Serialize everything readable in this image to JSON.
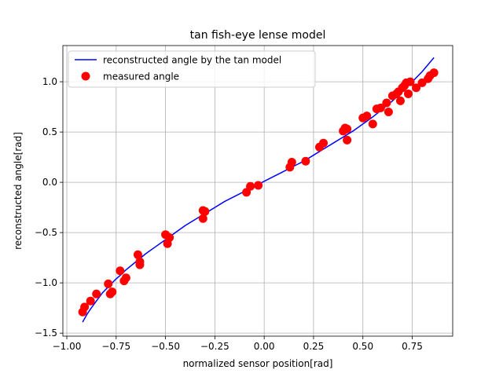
{
  "chart_data": {
    "type": "scatter",
    "title": "tan fish-eye lense model",
    "xlabel": "normalized sensor position[rad]",
    "ylabel": "reconstructed angle[rad]",
    "xlim": [
      -1.02,
      0.955
    ],
    "ylim": [
      -1.53,
      1.36
    ],
    "grid": true,
    "legend_position": "top-left",
    "xticks": [
      {
        "value": -1.0,
        "label": "−1.00"
      },
      {
        "value": -0.75,
        "label": "−0.75"
      },
      {
        "value": -0.5,
        "label": "−0.50"
      },
      {
        "value": -0.25,
        "label": "−0.25"
      },
      {
        "value": 0.0,
        "label": "0.00"
      },
      {
        "value": 0.25,
        "label": "0.25"
      },
      {
        "value": 0.5,
        "label": "0.50"
      },
      {
        "value": 0.75,
        "label": "0.75"
      }
    ],
    "yticks": [
      {
        "value": -1.5,
        "label": "−1.5"
      },
      {
        "value": -1.0,
        "label": "−1.0"
      },
      {
        "value": -0.5,
        "label": "−0.5"
      },
      {
        "value": 0.0,
        "label": "0.0"
      },
      {
        "value": 0.5,
        "label": "0.5"
      },
      {
        "value": 1.0,
        "label": "1.0"
      }
    ],
    "series": [
      {
        "name": "reconstructed angle by the tan model",
        "type": "line",
        "color": "#0000ff",
        "x": [
          -0.92,
          -0.9,
          -0.88,
          -0.85,
          -0.82,
          -0.8,
          -0.78,
          -0.75,
          -0.72,
          -0.7,
          -0.65,
          -0.6,
          -0.55,
          -0.5,
          -0.45,
          -0.4,
          -0.35,
          -0.3,
          -0.25,
          -0.2,
          -0.15,
          -0.1,
          -0.05,
          0.0,
          0.05,
          0.1,
          0.15,
          0.2,
          0.25,
          0.3,
          0.35,
          0.4,
          0.45,
          0.5,
          0.55,
          0.6,
          0.65,
          0.7,
          0.75,
          0.8,
          0.86
        ],
        "y": [
          -1.39,
          -1.32,
          -1.26,
          -1.18,
          -1.1,
          -1.06,
          -1.02,
          -0.96,
          -0.91,
          -0.87,
          -0.79,
          -0.71,
          -0.64,
          -0.57,
          -0.5,
          -0.43,
          -0.37,
          -0.31,
          -0.25,
          -0.19,
          -0.14,
          -0.09,
          -0.04,
          0.01,
          0.06,
          0.11,
          0.16,
          0.21,
          0.27,
          0.33,
          0.39,
          0.45,
          0.51,
          0.58,
          0.65,
          0.73,
          0.81,
          0.9,
          1.0,
          1.1,
          1.24
        ]
      },
      {
        "name": "measured angle",
        "type": "scatter",
        "color": "#ff0000",
        "x": [
          -0.92,
          -0.91,
          -0.88,
          -0.85,
          -0.79,
          -0.78,
          -0.77,
          -0.73,
          -0.71,
          -0.7,
          -0.64,
          -0.63,
          -0.63,
          -0.5,
          -0.49,
          -0.48,
          -0.31,
          -0.31,
          -0.3,
          -0.09,
          -0.07,
          -0.03,
          0.13,
          0.14,
          0.21,
          0.28,
          0.3,
          0.4,
          0.41,
          0.42,
          0.42,
          0.5,
          0.52,
          0.55,
          0.57,
          0.59,
          0.62,
          0.63,
          0.65,
          0.67,
          0.68,
          0.69,
          0.7,
          0.71,
          0.72,
          0.73,
          0.74,
          0.77,
          0.8,
          0.83,
          0.84,
          0.86
        ],
        "y": [
          -1.29,
          -1.24,
          -1.18,
          -1.11,
          -1.01,
          -1.11,
          -1.09,
          -0.88,
          -0.98,
          -0.95,
          -0.72,
          -0.79,
          -0.82,
          -0.52,
          -0.61,
          -0.55,
          -0.36,
          -0.28,
          -0.29,
          -0.1,
          -0.04,
          -0.03,
          0.15,
          0.2,
          0.21,
          0.35,
          0.39,
          0.51,
          0.54,
          0.42,
          0.53,
          0.64,
          0.66,
          0.58,
          0.73,
          0.74,
          0.79,
          0.7,
          0.86,
          0.88,
          0.9,
          0.81,
          0.94,
          0.96,
          0.99,
          0.88,
          1.0,
          0.94,
          0.99,
          1.03,
          1.06,
          1.09
        ]
      }
    ]
  }
}
